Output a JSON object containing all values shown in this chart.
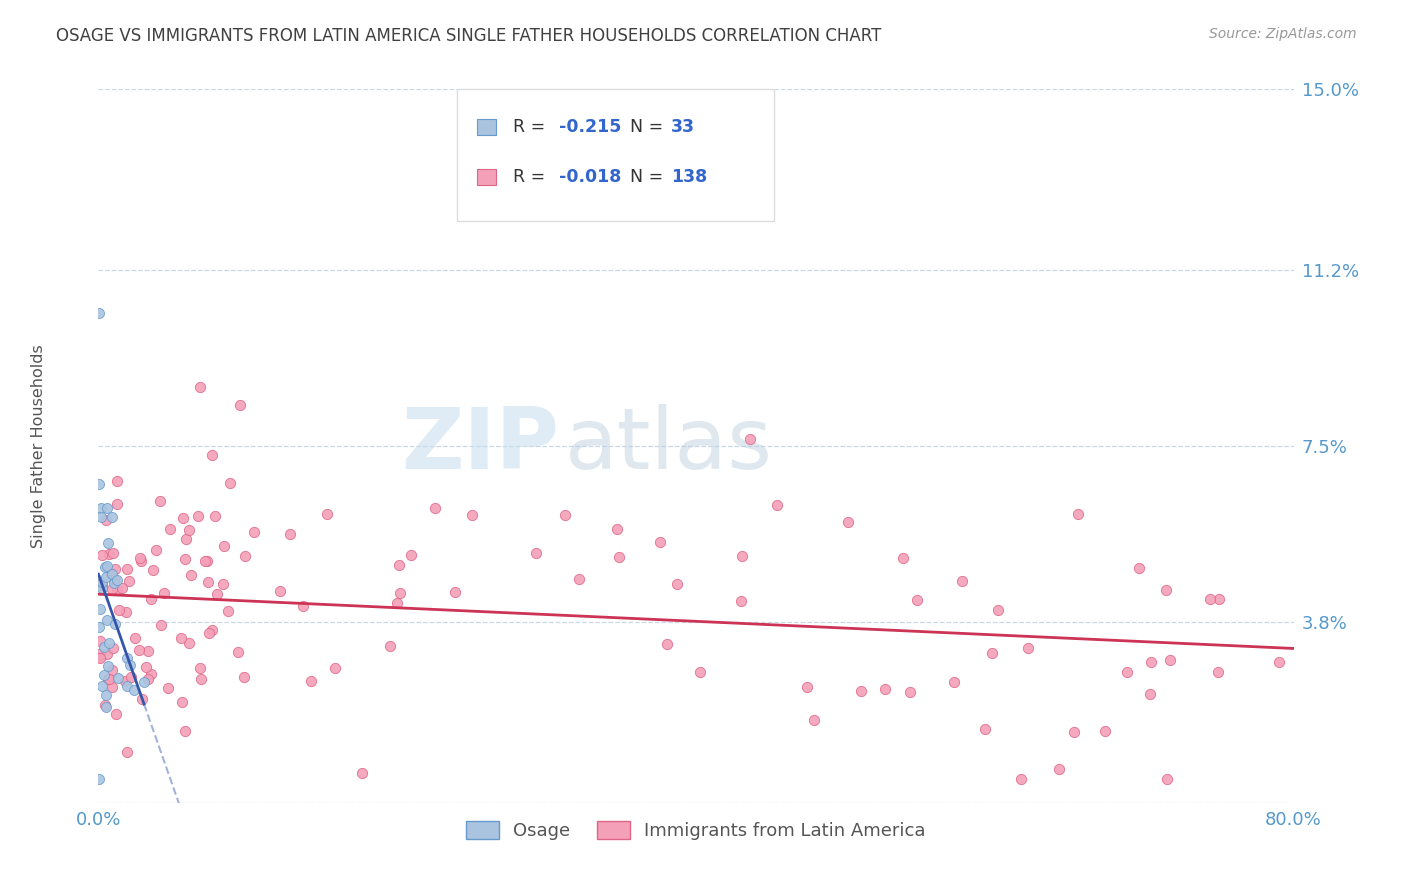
{
  "title": "OSAGE VS IMMIGRANTS FROM LATIN AMERICA SINGLE FATHER HOUSEHOLDS CORRELATION CHART",
  "source": "Source: ZipAtlas.com",
  "ylabel": "Single Father Households",
  "xlim": [
    0.0,
    0.8
  ],
  "ylim": [
    0.0,
    0.15
  ],
  "ytick_vals": [
    0.0,
    0.038,
    0.075,
    0.112,
    0.15
  ],
  "ytick_labels": [
    "",
    "3.8%",
    "7.5%",
    "11.2%",
    "15.0%"
  ],
  "xtick_vals": [
    0.0,
    0.2,
    0.4,
    0.6,
    0.8
  ],
  "xtick_labels": [
    "0.0%",
    "",
    "",
    "",
    "80.0%"
  ],
  "osage_R": -0.215,
  "osage_N": 33,
  "latin_R": -0.018,
  "latin_N": 138,
  "osage_color": "#aac4e0",
  "osage_edge_color": "#6699cc",
  "latin_color": "#f4a0b8",
  "latin_edge_color": "#dd6688",
  "trend_osage_color": "#3355aa",
  "trend_latin_color": "#cc3355",
  "background_color": "#ffffff",
  "grid_color": "#c8d8e8",
  "title_color": "#404040",
  "axis_tick_color": "#5599cc",
  "source_color": "#999999",
  "ylabel_color": "#555555",
  "watermark_zip_color": "#c0d8ee",
  "watermark_atlas_color": "#aaccdd",
  "legend_border_color": "#dddddd",
  "legend_text_color": "#333333",
  "legend_val_color": "#3366cc"
}
